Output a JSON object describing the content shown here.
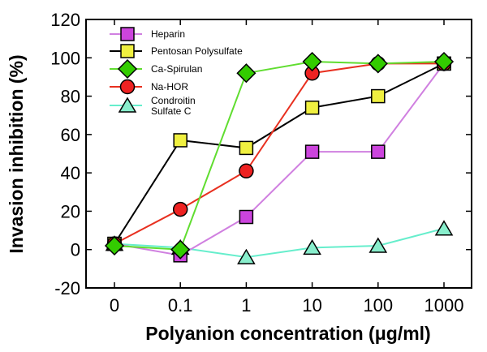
{
  "chart_data": {
    "type": "line",
    "title": "",
    "xlabel": "Polyanion concentration (μg/ml)",
    "ylabel": "Invasion inhibition (%)",
    "categories": [
      "0",
      "0.1",
      "1",
      "10",
      "100",
      "1000"
    ],
    "ylim": [
      -20,
      120
    ],
    "yticks": [
      -20,
      0,
      20,
      40,
      60,
      80,
      100,
      120
    ],
    "grid": false,
    "legend_position": "top-left",
    "series": [
      {
        "name": "Heparin",
        "marker": "square",
        "line_color": "#d080e0",
        "marker_color": "#cc44dd",
        "values": [
          3,
          -3,
          17,
          51,
          51,
          97
        ]
      },
      {
        "name": "Pentosan Polysulfate",
        "marker": "square",
        "line_color": "#000000",
        "marker_color": "#f0f040",
        "values": [
          3,
          57,
          53,
          74,
          80,
          97
        ]
      },
      {
        "name": "Ca-Spirulan",
        "marker": "diamond",
        "line_color": "#60dd30",
        "marker_color": "#33cc00",
        "values": [
          2,
          0,
          92,
          98,
          97,
          98
        ]
      },
      {
        "name": "Na-HOR",
        "marker": "circle",
        "line_color": "#e83020",
        "marker_color": "#ee2222",
        "values": [
          3,
          21,
          41,
          92,
          97,
          97
        ]
      },
      {
        "name": "Condroitin Sulfate C",
        "legend_lines": [
          "Condroitin",
          "Sulfate C"
        ],
        "marker": "triangle",
        "line_color": "#66eecc",
        "marker_color": "#88eecc",
        "values": [
          3,
          1,
          -4,
          1,
          2,
          11
        ]
      }
    ]
  }
}
